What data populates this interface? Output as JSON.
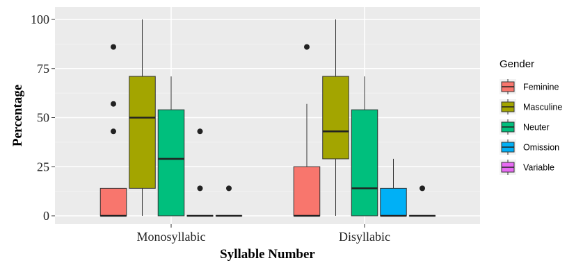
{
  "chart_data": {
    "type": "boxplot",
    "title": "",
    "xlabel": "Syllable Number",
    "ylabel": "Percentage",
    "ylim": [
      -3,
      104
    ],
    "yticks": [
      0,
      25,
      50,
      75,
      100
    ],
    "ytick_labels": [
      "0",
      "25",
      "50",
      "75",
      "100"
    ],
    "grid": true,
    "categories": [
      "Monosyllabic",
      "Disyllabic"
    ],
    "legend": {
      "title": "Gender",
      "position": "right",
      "entries": [
        "Feminine",
        "Masculine",
        "Neuter",
        "Omission",
        "Variable"
      ]
    },
    "colors": {
      "Feminine": "#F8766D",
      "Masculine": "#A3A500",
      "Neuter": "#00BF7D",
      "Omission": "#00B0F6",
      "Variable": "#E76BF3"
    },
    "groups": [
      {
        "category": "Monosyllabic",
        "boxes": [
          {
            "series": "Feminine",
            "min": 0,
            "q1": 0,
            "median": 0,
            "q3": 14,
            "max": 14,
            "outliers": [
              43,
              57,
              86
            ]
          },
          {
            "series": "Masculine",
            "min": 0,
            "q1": 14,
            "median": 50,
            "q3": 71,
            "max": 100,
            "outliers": []
          },
          {
            "series": "Neuter",
            "min": 0,
            "q1": 0,
            "median": 29,
            "q3": 54,
            "max": 71,
            "outliers": []
          },
          {
            "series": "Omission",
            "min": 0,
            "q1": 0,
            "median": 0,
            "q3": 0,
            "max": 0,
            "outliers": [
              14,
              43
            ]
          },
          {
            "series": "Variable",
            "min": 0,
            "q1": 0,
            "median": 0,
            "q3": 0,
            "max": 0,
            "outliers": [
              14
            ]
          }
        ]
      },
      {
        "category": "Disyllabic",
        "boxes": [
          {
            "series": "Feminine",
            "min": 0,
            "q1": 0,
            "median": 0,
            "q3": 25,
            "max": 57,
            "outliers": [
              86
            ]
          },
          {
            "series": "Masculine",
            "min": 0,
            "q1": 29,
            "median": 43,
            "q3": 71,
            "max": 100,
            "outliers": []
          },
          {
            "series": "Neuter",
            "min": 0,
            "q1": 0,
            "median": 14,
            "q3": 54,
            "max": 71,
            "outliers": []
          },
          {
            "series": "Omission",
            "min": 0,
            "q1": 0,
            "median": 0,
            "q3": 14,
            "max": 29,
            "outliers": []
          },
          {
            "series": "Variable",
            "min": 0,
            "q1": 0,
            "median": 0,
            "q3": 0,
            "max": 0,
            "outliers": [
              14
            ]
          }
        ]
      }
    ]
  }
}
